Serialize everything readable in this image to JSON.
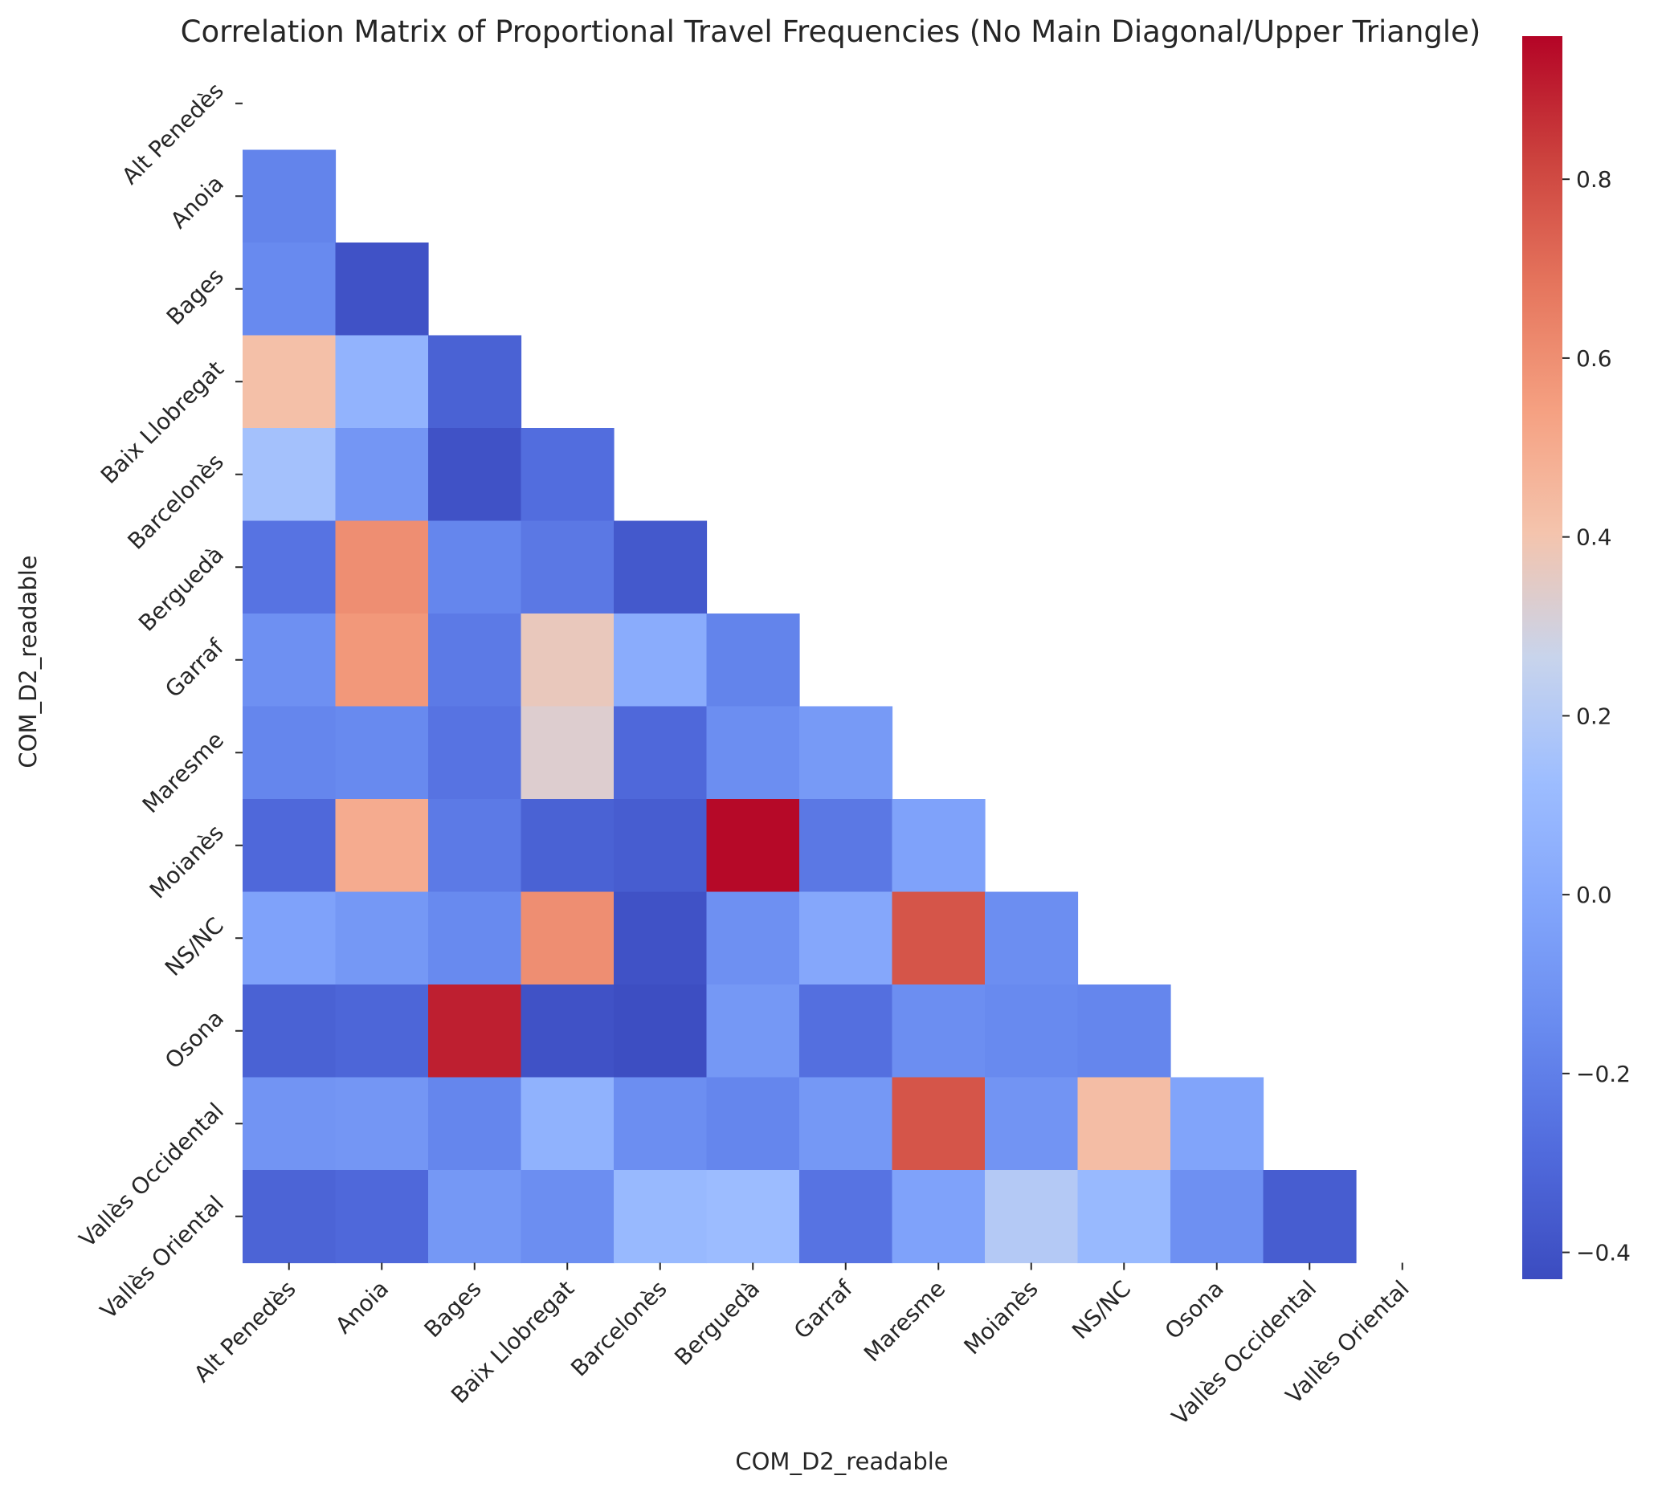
{
  "chart_data": {
    "type": "heatmap",
    "title": "Correlation Matrix of Proportional Travel Frequencies (No Main Diagonal/Upper Triangle)",
    "xlabel": "COM_D2_readable",
    "ylabel": "COM_D2_readable",
    "labels": [
      "Alt Penedès",
      "Anoia",
      "Bages",
      "Baix Llobregat",
      "Barcelonès",
      "Berguedà",
      "Garraf",
      "Maresme",
      "Moianès",
      "NS/NC",
      "Osona",
      "Vallès Occidental",
      "Vallès Oriental"
    ],
    "values": [
      [
        null,
        null,
        null,
        null,
        null,
        null,
        null,
        null,
        null,
        null,
        null,
        null,
        null
      ],
      [
        -0.18,
        null,
        null,
        null,
        null,
        null,
        null,
        null,
        null,
        null,
        null,
        null,
        null
      ],
      [
        -0.15,
        -0.4,
        null,
        null,
        null,
        null,
        null,
        null,
        null,
        null,
        null,
        null,
        null
      ],
      [
        0.42,
        0.07,
        -0.33,
        null,
        null,
        null,
        null,
        null,
        null,
        null,
        null,
        null,
        null
      ],
      [
        0.15,
        -0.09,
        -0.4,
        -0.28,
        null,
        null,
        null,
        null,
        null,
        null,
        null,
        null,
        null
      ],
      [
        -0.25,
        0.6,
        -0.17,
        -0.23,
        -0.37,
        null,
        null,
        null,
        null,
        null,
        null,
        null,
        null
      ],
      [
        -0.12,
        0.57,
        -0.22,
        0.37,
        0.03,
        -0.18,
        null,
        null,
        null,
        null,
        null,
        null,
        null
      ],
      [
        -0.17,
        -0.15,
        -0.25,
        0.33,
        -0.3,
        -0.13,
        -0.07,
        null,
        null,
        null,
        null,
        null,
        null
      ],
      [
        -0.3,
        0.5,
        -0.22,
        -0.33,
        -0.35,
        0.95,
        -0.23,
        -0.03,
        null,
        null,
        null,
        null,
        null
      ],
      [
        -0.03,
        -0.08,
        -0.15,
        0.6,
        -0.4,
        -0.12,
        0.0,
        0.77,
        -0.13,
        null,
        null,
        null,
        null
      ],
      [
        -0.33,
        -0.31,
        0.9,
        -0.4,
        -0.42,
        -0.08,
        -0.27,
        -0.13,
        -0.15,
        -0.17,
        null,
        null,
        null
      ],
      [
        -0.1,
        -0.09,
        -0.17,
        0.06,
        -0.13,
        -0.17,
        -0.08,
        0.77,
        -0.1,
        0.43,
        -0.02,
        null,
        null
      ],
      [
        -0.32,
        -0.3,
        -0.08,
        -0.13,
        0.1,
        0.12,
        -0.25,
        -0.03,
        0.2,
        0.1,
        -0.12,
        -0.35,
        null
      ]
    ],
    "colorbar": {
      "colormap": "coolwarm",
      "vmin": -0.43,
      "vmax": 0.96,
      "ticks": [
        "−0.4",
        "−0.2",
        "0.0",
        "0.2",
        "0.4",
        "0.6",
        "0.8"
      ]
    },
    "grid": false
  }
}
